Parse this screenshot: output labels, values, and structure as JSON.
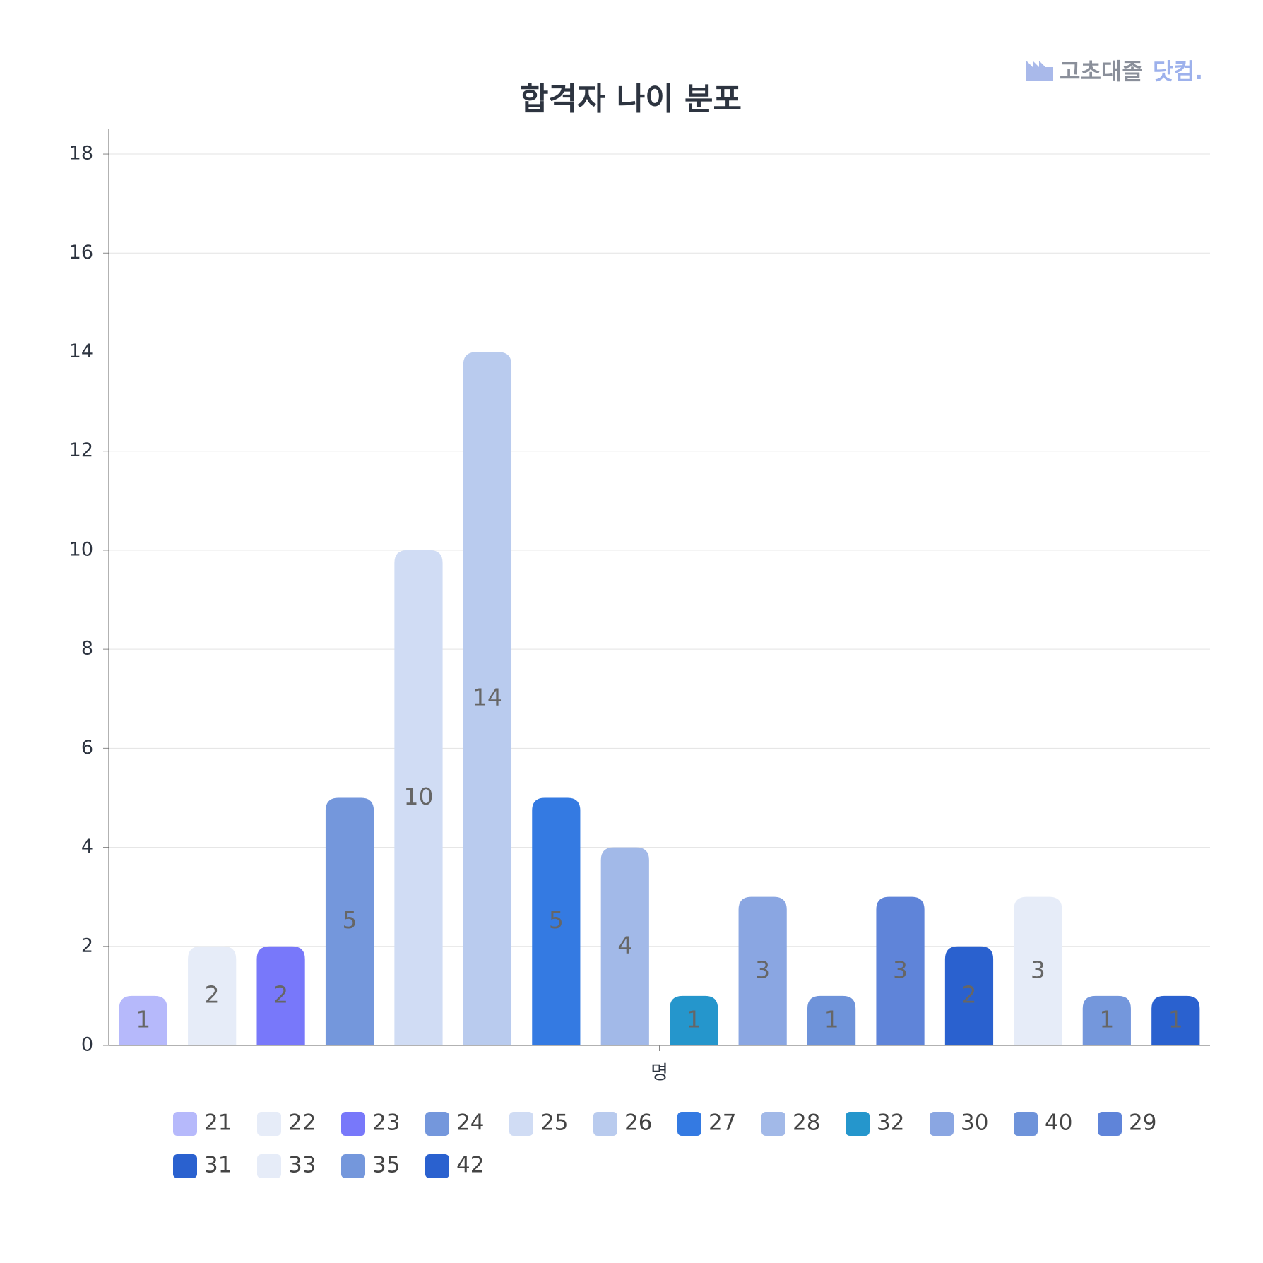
{
  "chart_data": {
    "type": "bar",
    "title": "합격자 나이 분포",
    "logo": {
      "brand": "고초대졸",
      "suffix": "닷컴."
    },
    "categories": [
      "명"
    ],
    "series": [
      {
        "name": "21",
        "color": "#b6b9fb",
        "values": [
          1
        ]
      },
      {
        "name": "22",
        "color": "#e6ecf8",
        "values": [
          2
        ]
      },
      {
        "name": "23",
        "color": "#7878fa",
        "values": [
          2
        ]
      },
      {
        "name": "24",
        "color": "#7497dc",
        "values": [
          5
        ]
      },
      {
        "name": "25",
        "color": "#d0dcf4",
        "values": [
          10
        ]
      },
      {
        "name": "26",
        "color": "#b9cbee",
        "values": [
          14
        ]
      },
      {
        "name": "27",
        "color": "#347ae2",
        "values": [
          5
        ]
      },
      {
        "name": "28",
        "color": "#a2b9e8",
        "values": [
          4
        ]
      },
      {
        "name": "32",
        "color": "#2596cc",
        "values": [
          1
        ]
      },
      {
        "name": "30",
        "color": "#8aa6e2",
        "values": [
          3
        ]
      },
      {
        "name": "40",
        "color": "#6e93da",
        "values": [
          1
        ]
      },
      {
        "name": "29",
        "color": "#5f84d9",
        "values": [
          3
        ]
      },
      {
        "name": "31",
        "color": "#2a61cf",
        "values": [
          2
        ]
      },
      {
        "name": "33",
        "color": "#e6ecf8",
        "values": [
          3
        ]
      },
      {
        "name": "35",
        "color": "#7497dc",
        "values": [
          1
        ]
      },
      {
        "name": "42",
        "color": "#2a61cf",
        "values": [
          1
        ]
      }
    ],
    "ylim": [
      0,
      18.5
    ],
    "yticks": [
      0,
      2,
      4,
      6,
      8,
      10,
      12,
      14,
      16,
      18
    ],
    "grid": true
  }
}
